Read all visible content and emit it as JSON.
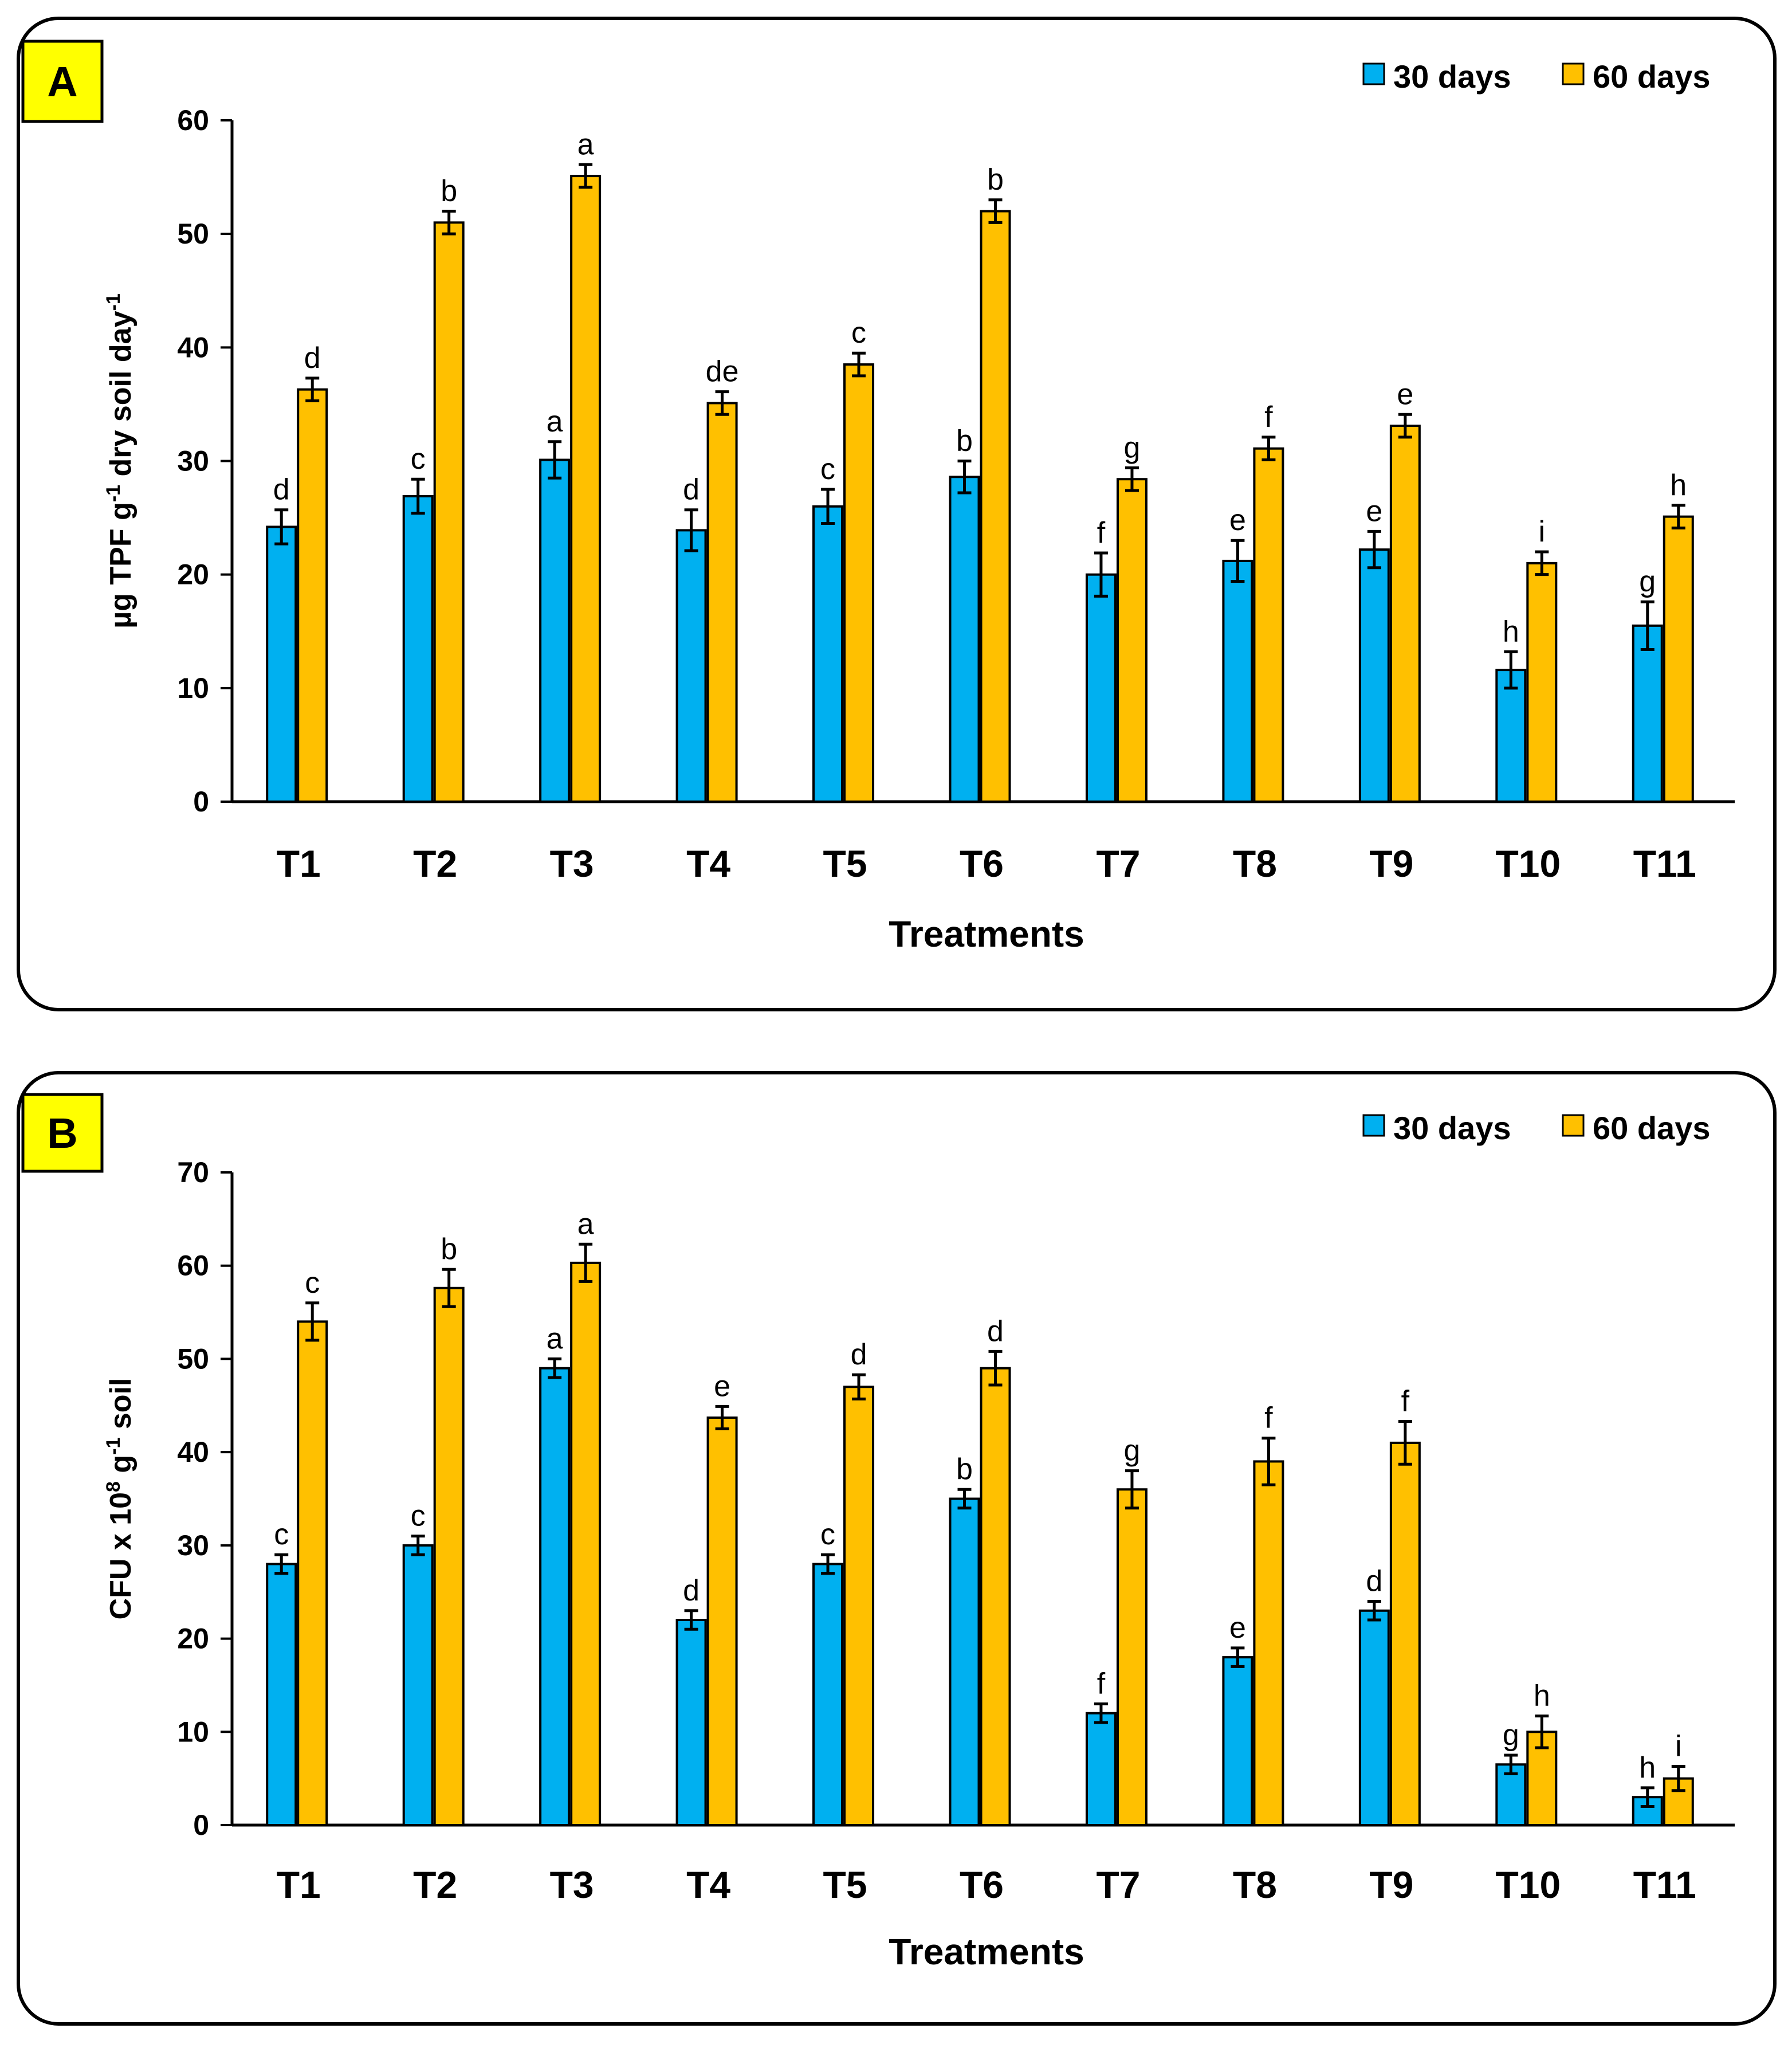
{
  "chart_data": [
    {
      "panel_label": "A",
      "type": "bar",
      "categories": [
        "T1",
        "T2",
        "T3",
        "T4",
        "T5",
        "T6",
        "T7",
        "T8",
        "T9",
        "T10",
        "T11"
      ],
      "series": [
        {
          "name": "30 days",
          "color": "#00b0f0",
          "values": [
            24.2,
            26.9,
            30.1,
            23.9,
            26.0,
            28.6,
            20.0,
            21.2,
            22.2,
            11.6,
            15.5
          ],
          "errors": [
            1.5,
            1.5,
            1.6,
            1.8,
            1.5,
            1.4,
            1.9,
            1.8,
            1.6,
            1.6,
            2.1
          ],
          "letters": [
            "d",
            "c",
            "a",
            "d",
            "c",
            "b",
            "f",
            "e",
            "e",
            "h",
            "g"
          ]
        },
        {
          "name": "60 days",
          "color": "#ffc000",
          "values": [
            36.3,
            51.0,
            55.1,
            35.1,
            38.5,
            52.0,
            28.4,
            31.1,
            33.1,
            21.0,
            25.1
          ],
          "errors": [
            1.0,
            1.0,
            1.0,
            1.0,
            1.0,
            1.0,
            1.0,
            1.0,
            1.0,
            1.0,
            1.0
          ],
          "letters": [
            "d",
            "b",
            "a",
            "de",
            "c",
            "b",
            "g",
            "f",
            "e",
            "i",
            "h"
          ]
        }
      ],
      "title": "",
      "xlabel": "Treatments",
      "ylabel": "µg TPF g⁻¹ dry soil  day⁻¹",
      "ylim": [
        0,
        60
      ],
      "yticks": [
        0,
        10,
        20,
        30,
        40,
        50,
        60
      ],
      "legend_position": "top-right"
    },
    {
      "panel_label": "B",
      "type": "bar",
      "categories": [
        "T1",
        "T2",
        "T3",
        "T4",
        "T5",
        "T6",
        "T7",
        "T8",
        "T9",
        "T10",
        "T11"
      ],
      "series": [
        {
          "name": "30 days",
          "color": "#00b0f0",
          "values": [
            28.0,
            30.0,
            49.0,
            22.0,
            28.0,
            35.0,
            12.0,
            18.0,
            23.0,
            6.5,
            3.0
          ],
          "errors": [
            1.0,
            1.0,
            1.0,
            1.0,
            1.0,
            1.0,
            1.0,
            1.0,
            1.0,
            1.0,
            1.0
          ],
          "letters": [
            "c",
            "c",
            "a",
            "d",
            "c",
            "b",
            "f",
            "e",
            "d",
            "g",
            "h"
          ]
        },
        {
          "name": "60 days",
          "color": "#ffc000",
          "values": [
            54.0,
            57.6,
            60.3,
            43.7,
            47.0,
            49.0,
            36.0,
            39.0,
            41.0,
            10.0,
            5.0
          ],
          "errors": [
            2.0,
            2.0,
            2.0,
            1.2,
            1.3,
            1.8,
            2.0,
            2.5,
            2.3,
            1.7,
            1.3
          ],
          "letters": [
            "c",
            "b",
            "a",
            "e",
            "d",
            "d",
            "g",
            "f",
            "f",
            "h",
            "i"
          ]
        }
      ],
      "title": "",
      "xlabel": "Treatments",
      "ylabel": "CFU x 10⁸ g⁻¹ soil",
      "ylim": [
        0,
        70
      ],
      "yticks": [
        0,
        10,
        20,
        30,
        40,
        50,
        60,
        70
      ],
      "legend_position": "top-right"
    }
  ]
}
